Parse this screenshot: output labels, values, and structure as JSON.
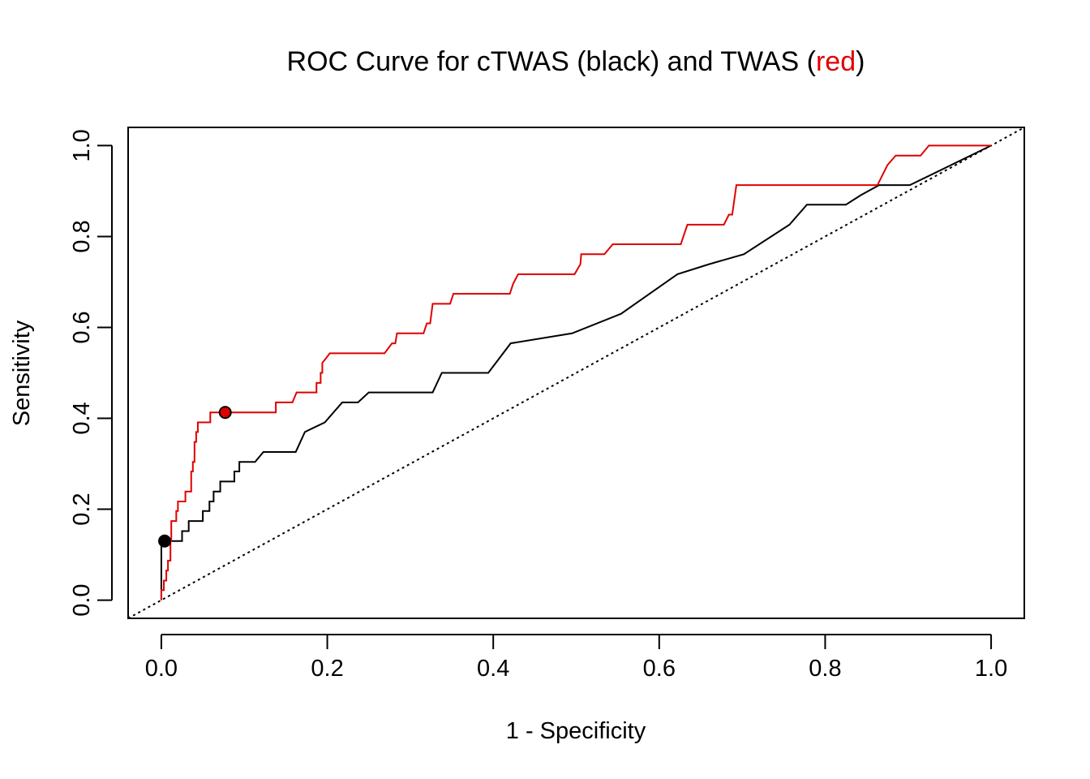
{
  "chart_data": {
    "type": "line",
    "title_parts": [
      {
        "text": "ROC Curve for cTWAS (black) and TWAS (",
        "color": "#000000"
      },
      {
        "text": "red",
        "color": "#e00000"
      },
      {
        "text": ")",
        "color": "#000000"
      }
    ],
    "xlabel": "1 - Specificity",
    "ylabel": "Sensitivity",
    "xlim": [
      -0.04,
      1.04
    ],
    "ylim": [
      -0.04,
      1.04
    ],
    "x_ticks": [
      0.0,
      0.2,
      0.4,
      0.6,
      0.8,
      1.0
    ],
    "x_tick_labels": [
      "0.0",
      "0.2",
      "0.4",
      "0.6",
      "0.8",
      "1.0"
    ],
    "y_ticks": [
      0.0,
      0.2,
      0.4,
      0.6,
      0.8,
      1.0
    ],
    "y_tick_labels": [
      "0.0",
      "0.2",
      "0.4",
      "0.6",
      "0.8",
      "1.0"
    ],
    "grid": false,
    "reference_line": {
      "from": [
        -0.04,
        -0.04
      ],
      "to": [
        1.04,
        1.04
      ],
      "style": "dotted",
      "color": "#000000"
    },
    "series": [
      {
        "color": "#000000",
        "points": [
          [
            0.0,
            0.0
          ],
          [
            0.0,
            0.13
          ],
          [
            0.025,
            0.13
          ],
          [
            0.025,
            0.152
          ],
          [
            0.033,
            0.152
          ],
          [
            0.033,
            0.174
          ],
          [
            0.05,
            0.174
          ],
          [
            0.05,
            0.196
          ],
          [
            0.058,
            0.196
          ],
          [
            0.058,
            0.217
          ],
          [
            0.063,
            0.217
          ],
          [
            0.063,
            0.239
          ],
          [
            0.071,
            0.239
          ],
          [
            0.071,
            0.261
          ],
          [
            0.088,
            0.261
          ],
          [
            0.088,
            0.283
          ],
          [
            0.094,
            0.283
          ],
          [
            0.094,
            0.304
          ],
          [
            0.113,
            0.304
          ],
          [
            0.123,
            0.326
          ],
          [
            0.162,
            0.326
          ],
          [
            0.173,
            0.37
          ],
          [
            0.197,
            0.391
          ],
          [
            0.218,
            0.435
          ],
          [
            0.237,
            0.435
          ],
          [
            0.25,
            0.457
          ],
          [
            0.327,
            0.457
          ],
          [
            0.338,
            0.5
          ],
          [
            0.394,
            0.5
          ],
          [
            0.421,
            0.565
          ],
          [
            0.495,
            0.587
          ],
          [
            0.554,
            0.63
          ],
          [
            0.622,
            0.717
          ],
          [
            0.66,
            0.739
          ],
          [
            0.702,
            0.761
          ],
          [
            0.757,
            0.826
          ],
          [
            0.778,
            0.87
          ],
          [
            0.825,
            0.87
          ],
          [
            0.843,
            0.891
          ],
          [
            0.865,
            0.913
          ],
          [
            0.902,
            0.913
          ],
          [
            1.0,
            1.0
          ]
        ],
        "marker": {
          "x": 0.004,
          "y": 0.13,
          "fill": "#000000"
        }
      },
      {
        "color": "#e00000",
        "points": [
          [
            0.0,
            0.0
          ],
          [
            0.0,
            0.022
          ],
          [
            0.003,
            0.022
          ],
          [
            0.003,
            0.043
          ],
          [
            0.006,
            0.043
          ],
          [
            0.006,
            0.065
          ],
          [
            0.008,
            0.065
          ],
          [
            0.008,
            0.087
          ],
          [
            0.011,
            0.087
          ],
          [
            0.011,
            0.13
          ],
          [
            0.012,
            0.13
          ],
          [
            0.012,
            0.174
          ],
          [
            0.018,
            0.174
          ],
          [
            0.018,
            0.196
          ],
          [
            0.02,
            0.196
          ],
          [
            0.02,
            0.217
          ],
          [
            0.029,
            0.217
          ],
          [
            0.029,
            0.239
          ],
          [
            0.036,
            0.239
          ],
          [
            0.036,
            0.283
          ],
          [
            0.038,
            0.283
          ],
          [
            0.038,
            0.304
          ],
          [
            0.04,
            0.304
          ],
          [
            0.04,
            0.348
          ],
          [
            0.042,
            0.348
          ],
          [
            0.042,
            0.37
          ],
          [
            0.044,
            0.37
          ],
          [
            0.044,
            0.391
          ],
          [
            0.059,
            0.391
          ],
          [
            0.059,
            0.413
          ],
          [
            0.138,
            0.413
          ],
          [
            0.138,
            0.435
          ],
          [
            0.158,
            0.435
          ],
          [
            0.163,
            0.457
          ],
          [
            0.187,
            0.457
          ],
          [
            0.187,
            0.478
          ],
          [
            0.192,
            0.478
          ],
          [
            0.192,
            0.5
          ],
          [
            0.194,
            0.5
          ],
          [
            0.194,
            0.522
          ],
          [
            0.198,
            0.531
          ],
          [
            0.203,
            0.543
          ],
          [
            0.269,
            0.543
          ],
          [
            0.278,
            0.565
          ],
          [
            0.282,
            0.565
          ],
          [
            0.284,
            0.587
          ],
          [
            0.316,
            0.587
          ],
          [
            0.32,
            0.609
          ],
          [
            0.324,
            0.609
          ],
          [
            0.327,
            0.652
          ],
          [
            0.348,
            0.652
          ],
          [
            0.352,
            0.674
          ],
          [
            0.42,
            0.674
          ],
          [
            0.424,
            0.696
          ],
          [
            0.43,
            0.717
          ],
          [
            0.498,
            0.717
          ],
          [
            0.505,
            0.739
          ],
          [
            0.506,
            0.761
          ],
          [
            0.534,
            0.761
          ],
          [
            0.544,
            0.783
          ],
          [
            0.626,
            0.783
          ],
          [
            0.634,
            0.826
          ],
          [
            0.678,
            0.826
          ],
          [
            0.684,
            0.848
          ],
          [
            0.688,
            0.848
          ],
          [
            0.693,
            0.913
          ],
          [
            0.863,
            0.913
          ],
          [
            0.875,
            0.957
          ],
          [
            0.885,
            0.978
          ],
          [
            0.915,
            0.978
          ],
          [
            0.925,
            1.0
          ],
          [
            1.0,
            1.0
          ]
        ],
        "marker": {
          "x": 0.077,
          "y": 0.413,
          "fill": "#e00000"
        }
      }
    ]
  }
}
